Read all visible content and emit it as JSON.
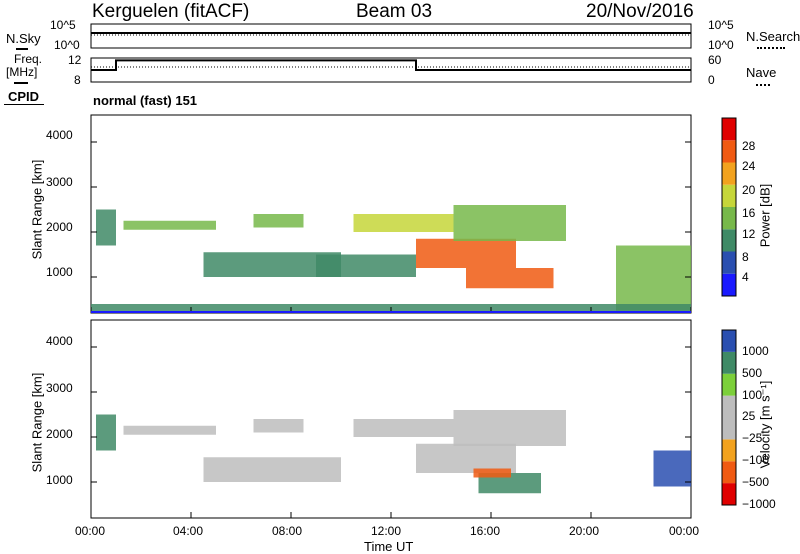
{
  "header": {
    "station": "Kerguelen (fitACF)",
    "beam": "Beam 03",
    "date": "20/Nov/2016"
  },
  "top_strip": {
    "nsky_label": "N.Sky",
    "nsky_ticks": [
      "10^5",
      "10^0"
    ],
    "nsearch_label": "N.Search",
    "nsearch_ticks": [
      "10^5",
      "10^0"
    ],
    "freq_label_1": "Freq.",
    "freq_label_2": "[MHz]",
    "freq_ticks": [
      "12",
      "8"
    ],
    "nave_label": "Nave",
    "nave_ticks": [
      "60",
      "0"
    ],
    "cpid_label": "CPID",
    "cpid_value": "normal (fast) 151"
  },
  "panels": {
    "power": {
      "ylabel": "Slant Range [km]",
      "yticks": [
        "4000",
        "3000",
        "2000",
        "1000"
      ],
      "cbar_label": "Power [dB]",
      "cbar_ticks": [
        "28",
        "24",
        "20",
        "16",
        "12",
        "8",
        "4"
      ]
    },
    "velocity": {
      "ylabel": "Slant Range [km]",
      "yticks": [
        "4000",
        "3000",
        "2000",
        "1000"
      ],
      "cbar_label": "Velocity [m s⁻¹]",
      "cbar_ticks": [
        "1000",
        "500",
        "100",
        "25",
        "−25",
        "−100",
        "−500",
        "−1000"
      ]
    }
  },
  "xaxis": {
    "label": "Time UT",
    "ticks": [
      "00:00",
      "04:00",
      "08:00",
      "12:00",
      "16:00",
      "20:00",
      "00:00"
    ]
  },
  "colors": {
    "power_scale": [
      "#1a1aff",
      "#2a4fb0",
      "#3f8a66",
      "#77b84a",
      "#c6d63a",
      "#f2a21e",
      "#f05a12",
      "#e00000"
    ],
    "velocity_scale": [
      "#e00000",
      "#f05a12",
      "#f2a21e",
      "#bdbdbd",
      "#bdbdbd",
      "#7ccf3a",
      "#3f8a66",
      "#2a4fb0"
    ],
    "velocity_gray": "#bdbdbd"
  },
  "chart_data": [
    {
      "type": "line",
      "title": "Kerguelen (fitACF) Beam 03",
      "xlabel": "Time UT",
      "ylabel": "Freq. [MHz]",
      "series": [
        {
          "x": [
            0,
            1,
            1,
            13,
            13,
            24
          ],
          "values": [
            10.0,
            10.0,
            11.6,
            11.6,
            10.0,
            10.0
          ]
        }
      ],
      "xlim": [
        0,
        24
      ],
      "ylim": [
        8,
        12
      ]
    },
    {
      "type": "heatmap",
      "title": "Power",
      "xlabel": "Time UT",
      "ylabel": "Slant Range [km]",
      "xlim": [
        0,
        24
      ],
      "ylim": [
        200,
        4600
      ],
      "colorbar": {
        "label": "Power [dB]",
        "ticks": [
          4,
          8,
          12,
          16,
          20,
          24,
          28
        ]
      },
      "regions": [
        {
          "t0": 0.2,
          "t1": 1.0,
          "r0": 1700,
          "r1": 2500,
          "value": 10
        },
        {
          "t0": 1.3,
          "t1": 5.0,
          "r0": 2050,
          "r1": 2250,
          "value": 12
        },
        {
          "t0": 4.5,
          "t1": 10.0,
          "r0": 1000,
          "r1": 1550,
          "value": 10
        },
        {
          "t0": 6.5,
          "t1": 8.5,
          "r0": 2100,
          "r1": 2400,
          "value": 14
        },
        {
          "t0": 9.0,
          "t1": 13.0,
          "r0": 1000,
          "r1": 1500,
          "value": 8
        },
        {
          "t0": 10.5,
          "t1": 14.5,
          "r0": 2000,
          "r1": 2400,
          "value": 16
        },
        {
          "t0": 13.0,
          "t1": 17.0,
          "r0": 1200,
          "r1": 1850,
          "value": 26
        },
        {
          "t0": 15.0,
          "t1": 18.5,
          "r0": 750,
          "r1": 1200,
          "value": 24
        },
        {
          "t0": 14.5,
          "t1": 19.0,
          "r0": 1800,
          "r1": 2600,
          "value": 12
        },
        {
          "t0": 21.0,
          "t1": 24.0,
          "r0": 250,
          "r1": 1700,
          "value": 14
        },
        {
          "t0": 0.0,
          "t1": 24.0,
          "r0": 200,
          "r1": 400,
          "value": 8
        }
      ]
    },
    {
      "type": "heatmap",
      "title": "Velocity",
      "xlabel": "Time UT",
      "ylabel": "Slant Range [km]",
      "xlim": [
        0,
        24
      ],
      "ylim": [
        200,
        4600
      ],
      "colorbar": {
        "label": "Velocity [m s-1]",
        "ticks": [
          -1000,
          -500,
          -100,
          -25,
          25,
          100,
          500,
          1000
        ]
      },
      "regions": [
        {
          "t0": 0.2,
          "t1": 1.0,
          "r0": 1700,
          "r1": 2500,
          "value": 150
        },
        {
          "t0": 1.3,
          "t1": 5.0,
          "r0": 2050,
          "r1": 2250,
          "value": 0
        },
        {
          "t0": 4.5,
          "t1": 10.0,
          "r0": 1000,
          "r1": 1550,
          "value": 0
        },
        {
          "t0": 6.5,
          "t1": 8.5,
          "r0": 2100,
          "r1": 2400,
          "value": 0
        },
        {
          "t0": 10.5,
          "t1": 14.5,
          "r0": 2000,
          "r1": 2400,
          "value": 0
        },
        {
          "t0": 13.0,
          "t1": 17.0,
          "r0": 1200,
          "r1": 1850,
          "value": 0
        },
        {
          "t0": 15.5,
          "t1": 18.0,
          "r0": 750,
          "r1": 1200,
          "value": 200
        },
        {
          "t0": 15.3,
          "t1": 16.8,
          "r0": 1100,
          "r1": 1300,
          "value": -200
        },
        {
          "t0": 14.5,
          "t1": 19.0,
          "r0": 1800,
          "r1": 2600,
          "value": 0
        },
        {
          "t0": 22.5,
          "t1": 24.0,
          "r0": 900,
          "r1": 1700,
          "value": 600
        }
      ]
    }
  ]
}
